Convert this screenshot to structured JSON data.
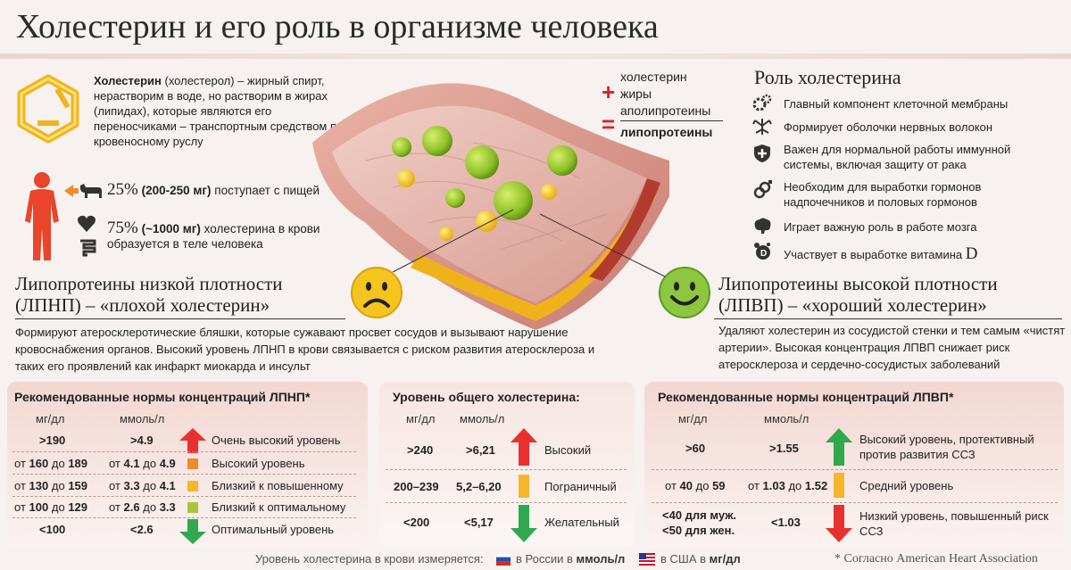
{
  "title": "Холестерин и его роль в организме человека",
  "intro": {
    "term": "Холестерин",
    "text": " (холестерол) – жирный спирт, нерастворим в воде, но растворим в жирах (липидах), которые являются его переносчиками – транспортным средством по кровеносному руслу"
  },
  "sources": {
    "food_pct": "25%",
    "food_amount": "(200-250 мг)",
    "food_text": "поступает с пищей",
    "body_pct": "75%",
    "body_amount": "(~1000 мг)",
    "body_text_1": "холестерина в крови",
    "body_text_2": "образуется в теле человека"
  },
  "equation": {
    "line1": "холестерин",
    "plus": "+",
    "line2": "жиры",
    "line3": "аполипротеины",
    "equals": "=",
    "result": "липопротеины"
  },
  "role": {
    "title": "Роль холестерина",
    "items": [
      {
        "text": "Главный компонент клеточной мембраны"
      },
      {
        "text": "Формирует оболочки нервных волокон"
      },
      {
        "text": "Важен для нормальной работы иммунной системы, включая защиту от рака"
      },
      {
        "text": "Необходим для выработки гормонов надпочечников и половых гормонов"
      },
      {
        "text": "Играет важную роль в работе мозга"
      },
      {
        "text": "Участвует в выработке витамина",
        "suffix": "D"
      }
    ]
  },
  "ldl": {
    "title_line1": "Липопротеины низкой плотности",
    "title_line2": "(ЛПНП) – «плохой холестерин»",
    "desc": "Формируют атеросклеротические бляшки, которые сужавают просвет сосудов и вызывают нарушение кровоснабжения органов. Высокий уровень ЛПНП в крови связывается с риском развития атеросклероза и таких его проявлений как инфаркт миокарда и инсульт"
  },
  "hdl": {
    "title_line1": "Липопротеины высокой плотности",
    "title_line2": "(ЛПВП) – «хороший холестерин»",
    "desc": "Удаляют холестерин из сосудистой стенки и тем самым «чистят артерии». Высокая концентрация ЛПВП снижает риск атеросклероза и сердечно-сосудистых заболеваний"
  },
  "ldl_table": {
    "title": "Рекомендованные нормы концентраций ЛПНП*",
    "col_mg": "мг/дл",
    "col_mmol": "ммоль/л",
    "from_word": "от",
    "to_word": "до",
    "rows": [
      {
        "mg": ">190",
        "mmol": ">4.9",
        "label": "Очень высокий уровень",
        "color": "#e8312f"
      },
      {
        "mg_from": "160",
        "mg_to": "189",
        "mmol_from": "4.1",
        "mmol_to": "4.9",
        "label": "Высокий уровень",
        "color": "#f08a2a"
      },
      {
        "mg_from": "130",
        "mg_to": "159",
        "mmol_from": "3.3",
        "mmol_to": "4.1",
        "label": "Близкий к повышенному",
        "color": "#f5b52d"
      },
      {
        "mg_from": "100",
        "mg_to": "129",
        "mmol_from": "2.6",
        "mmol_to": "3.3",
        "label": "Близкий к оптимальному",
        "color": "#a8c53a"
      },
      {
        "mg": "<100",
        "mmol": "<2.6",
        "label": "Оптимальный уровень",
        "color": "#2fa84f"
      }
    ]
  },
  "total_table": {
    "title": "Уровень общего холестерина:",
    "col_mg": "мг/дл",
    "col_mmol": "ммоль/л",
    "rows": [
      {
        "mg": ">240",
        "mmol": ">6,21",
        "label": "Высокий",
        "color": "#e8312f"
      },
      {
        "mg": "200–239",
        "mmol": "5,2–6,20",
        "label": "Пограничный",
        "color": "#f5b52d"
      },
      {
        "mg": "<200",
        "mmol": "<5,17",
        "label": "Желательный",
        "color": "#2fa84f"
      }
    ]
  },
  "hdl_table": {
    "title": "Рекомендованные нормы концентраций ЛПВП*",
    "col_mg": "мг/дл",
    "col_mmol": "ммоль/л",
    "from_word": "от",
    "to_word": "до",
    "rows": [
      {
        "mg": ">60",
        "mmol": ">1.55",
        "label": "Высокий уровень, протективный против развития ССЗ",
        "color": "#2fa84f"
      },
      {
        "mg_from": "40",
        "mg_to": "59",
        "mmol_from": "1.03",
        "mmol_to": "1.52",
        "label": "Средний уровень",
        "color": "#f5b52d"
      },
      {
        "mg_line1": "<40 для муж.",
        "mg_line2": "<50 для жен.",
        "mmol": "<1.03",
        "label": "Низкий уровень, повышенный риск ССЗ",
        "color": "#e8312f"
      }
    ]
  },
  "footer": {
    "text": "Уровень холестерина в крови измеряется:",
    "russia_prefix": "в России в",
    "russia_unit": "ммоль/л",
    "usa_prefix": "в США в",
    "usa_unit": "мг/дл",
    "note": "* Согласно American Heart Association"
  }
}
